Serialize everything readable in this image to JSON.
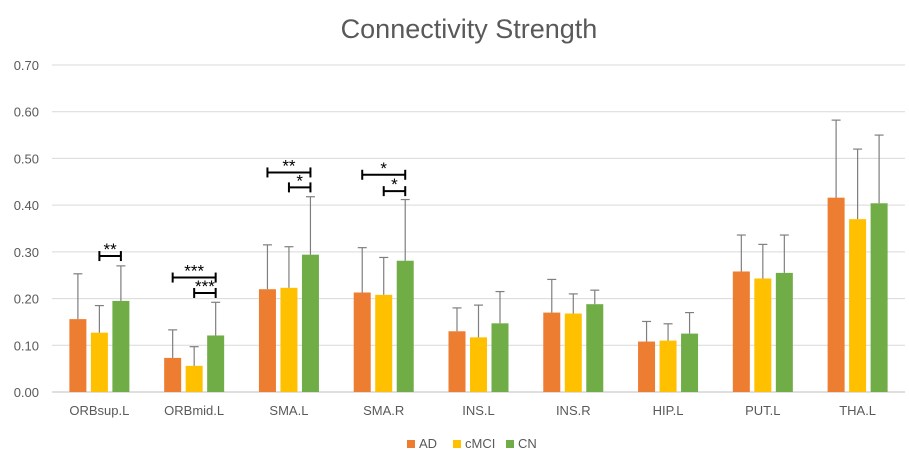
{
  "chart_data": {
    "type": "bar",
    "title": "Connectivity Strength",
    "xlabel": "",
    "ylabel": "",
    "ylim": [
      0,
      0.7
    ],
    "yticks": [
      "0.00",
      "0.10",
      "0.20",
      "0.30",
      "0.40",
      "0.50",
      "0.60",
      "0.70"
    ],
    "grid": true,
    "legend_position": "bottom",
    "categories": [
      "ORBsup.L",
      "ORBmid.L",
      "SMA.L",
      "SMA.R",
      "INS.L",
      "INS.R",
      "HIP.L",
      "PUT.L",
      "THA.L"
    ],
    "series": [
      {
        "name": "AD",
        "color": "#ED7D31",
        "values": [
          0.156,
          0.073,
          0.22,
          0.213,
          0.13,
          0.17,
          0.108,
          0.258,
          0.416
        ],
        "errors": [
          0.097,
          0.06,
          0.095,
          0.096,
          0.05,
          0.071,
          0.043,
          0.078,
          0.166
        ]
      },
      {
        "name": "cMCI",
        "color": "#FFC000",
        "values": [
          0.127,
          0.056,
          0.223,
          0.208,
          0.117,
          0.168,
          0.11,
          0.243,
          0.37
        ],
        "errors": [
          0.058,
          0.041,
          0.088,
          0.08,
          0.069,
          0.042,
          0.036,
          0.073,
          0.15
        ]
      },
      {
        "name": "CN",
        "color": "#70AD47",
        "values": [
          0.195,
          0.121,
          0.294,
          0.281,
          0.147,
          0.188,
          0.125,
          0.255,
          0.404
        ],
        "errors": [
          0.075,
          0.071,
          0.124,
          0.131,
          0.068,
          0.03,
          0.045,
          0.081,
          0.146
        ]
      }
    ],
    "significance": [
      {
        "category": "ORBsup.L",
        "from": "cMCI",
        "to": "CN",
        "label": "**",
        "y": 0.291
      },
      {
        "category": "ORBmid.L",
        "from": "AD",
        "to": "CN",
        "label": "***",
        "y": 0.245
      },
      {
        "category": "ORBmid.L",
        "from": "cMCI",
        "to": "CN",
        "label": "***",
        "y": 0.212
      },
      {
        "category": "SMA.L",
        "from": "AD",
        "to": "CN",
        "label": "**",
        "y": 0.47
      },
      {
        "category": "SMA.L",
        "from": "cMCI",
        "to": "CN",
        "label": "*",
        "y": 0.438
      },
      {
        "category": "SMA.R",
        "from": "AD",
        "to": "CN",
        "label": "*",
        "y": 0.465
      },
      {
        "category": "SMA.R",
        "from": "cMCI",
        "to": "CN",
        "label": "*",
        "y": 0.43
      }
    ]
  }
}
